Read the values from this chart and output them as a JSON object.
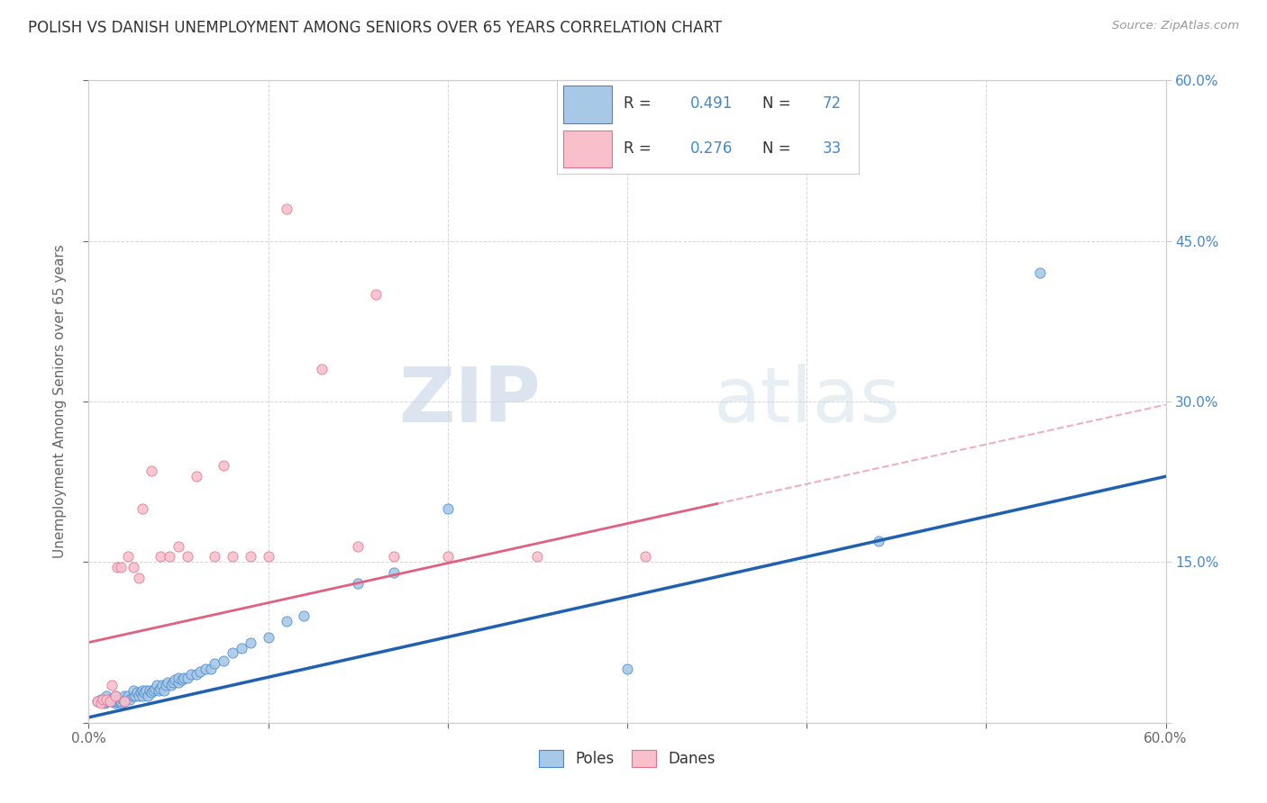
{
  "title": "POLISH VS DANISH UNEMPLOYMENT AMONG SENIORS OVER 65 YEARS CORRELATION CHART",
  "source": "Source: ZipAtlas.com",
  "ylabel": "Unemployment Among Seniors over 65 years",
  "xlim": [
    0.0,
    0.6
  ],
  "ylim": [
    0.0,
    0.6
  ],
  "xticks": [
    0.0,
    0.1,
    0.2,
    0.3,
    0.4,
    0.5,
    0.6
  ],
  "yticks": [
    0.0,
    0.15,
    0.3,
    0.45,
    0.6
  ],
  "xticklabels": [
    "0.0%",
    "",
    "",
    "",
    "",
    "",
    "60.0%"
  ],
  "yticklabels_right": [
    "",
    "15.0%",
    "30.0%",
    "45.0%",
    "60.0%"
  ],
  "grid_color": "#cccccc",
  "background_color": "#ffffff",
  "poles_color": "#a8c8e8",
  "danes_color": "#f9c0cc",
  "poles_edge_color": "#4488cc",
  "danes_edge_color": "#e07090",
  "poles_R": 0.491,
  "poles_N": 72,
  "danes_R": 0.276,
  "danes_N": 33,
  "poles_line_color": "#2060b0",
  "danes_line_color": "#e06080",
  "poles_line_intercept": 0.005,
  "poles_line_slope": 0.375,
  "danes_line_intercept": 0.075,
  "danes_line_slope": 0.37,
  "watermark_zip": "ZIP",
  "watermark_atlas": "atlas",
  "poles_x": [
    0.005,
    0.007,
    0.008,
    0.009,
    0.01,
    0.01,
    0.01,
    0.012,
    0.013,
    0.014,
    0.015,
    0.015,
    0.015,
    0.016,
    0.017,
    0.018,
    0.018,
    0.019,
    0.02,
    0.02,
    0.021,
    0.022,
    0.023,
    0.025,
    0.025,
    0.026,
    0.027,
    0.028,
    0.029,
    0.03,
    0.03,
    0.031,
    0.032,
    0.033,
    0.034,
    0.035,
    0.036,
    0.037,
    0.038,
    0.039,
    0.04,
    0.041,
    0.042,
    0.043,
    0.044,
    0.046,
    0.047,
    0.048,
    0.05,
    0.05,
    0.052,
    0.053,
    0.055,
    0.057,
    0.06,
    0.062,
    0.065,
    0.068,
    0.07,
    0.075,
    0.08,
    0.085,
    0.09,
    0.1,
    0.11,
    0.12,
    0.15,
    0.17,
    0.2,
    0.3,
    0.44,
    0.53
  ],
  "poles_y": [
    0.02,
    0.022,
    0.02,
    0.018,
    0.02,
    0.02,
    0.025,
    0.022,
    0.02,
    0.022,
    0.018,
    0.02,
    0.025,
    0.02,
    0.022,
    0.018,
    0.02,
    0.022,
    0.02,
    0.025,
    0.022,
    0.025,
    0.022,
    0.025,
    0.03,
    0.025,
    0.028,
    0.025,
    0.028,
    0.025,
    0.03,
    0.028,
    0.03,
    0.025,
    0.03,
    0.028,
    0.03,
    0.032,
    0.035,
    0.03,
    0.032,
    0.035,
    0.03,
    0.035,
    0.038,
    0.035,
    0.038,
    0.04,
    0.038,
    0.042,
    0.04,
    0.042,
    0.042,
    0.045,
    0.045,
    0.048,
    0.05,
    0.05,
    0.055,
    0.058,
    0.065,
    0.07,
    0.075,
    0.08,
    0.095,
    0.1,
    0.13,
    0.14,
    0.2,
    0.05,
    0.17,
    0.42
  ],
  "danes_x": [
    0.005,
    0.007,
    0.008,
    0.01,
    0.012,
    0.013,
    0.015,
    0.016,
    0.018,
    0.02,
    0.022,
    0.025,
    0.028,
    0.03,
    0.035,
    0.04,
    0.045,
    0.05,
    0.055,
    0.06,
    0.07,
    0.075,
    0.08,
    0.09,
    0.1,
    0.11,
    0.13,
    0.15,
    0.16,
    0.17,
    0.2,
    0.25,
    0.31
  ],
  "danes_y": [
    0.02,
    0.018,
    0.022,
    0.022,
    0.02,
    0.035,
    0.025,
    0.145,
    0.145,
    0.02,
    0.155,
    0.145,
    0.135,
    0.2,
    0.235,
    0.155,
    0.155,
    0.165,
    0.155,
    0.23,
    0.155,
    0.24,
    0.155,
    0.155,
    0.155,
    0.48,
    0.33,
    0.165,
    0.4,
    0.155,
    0.155,
    0.155,
    0.155
  ]
}
